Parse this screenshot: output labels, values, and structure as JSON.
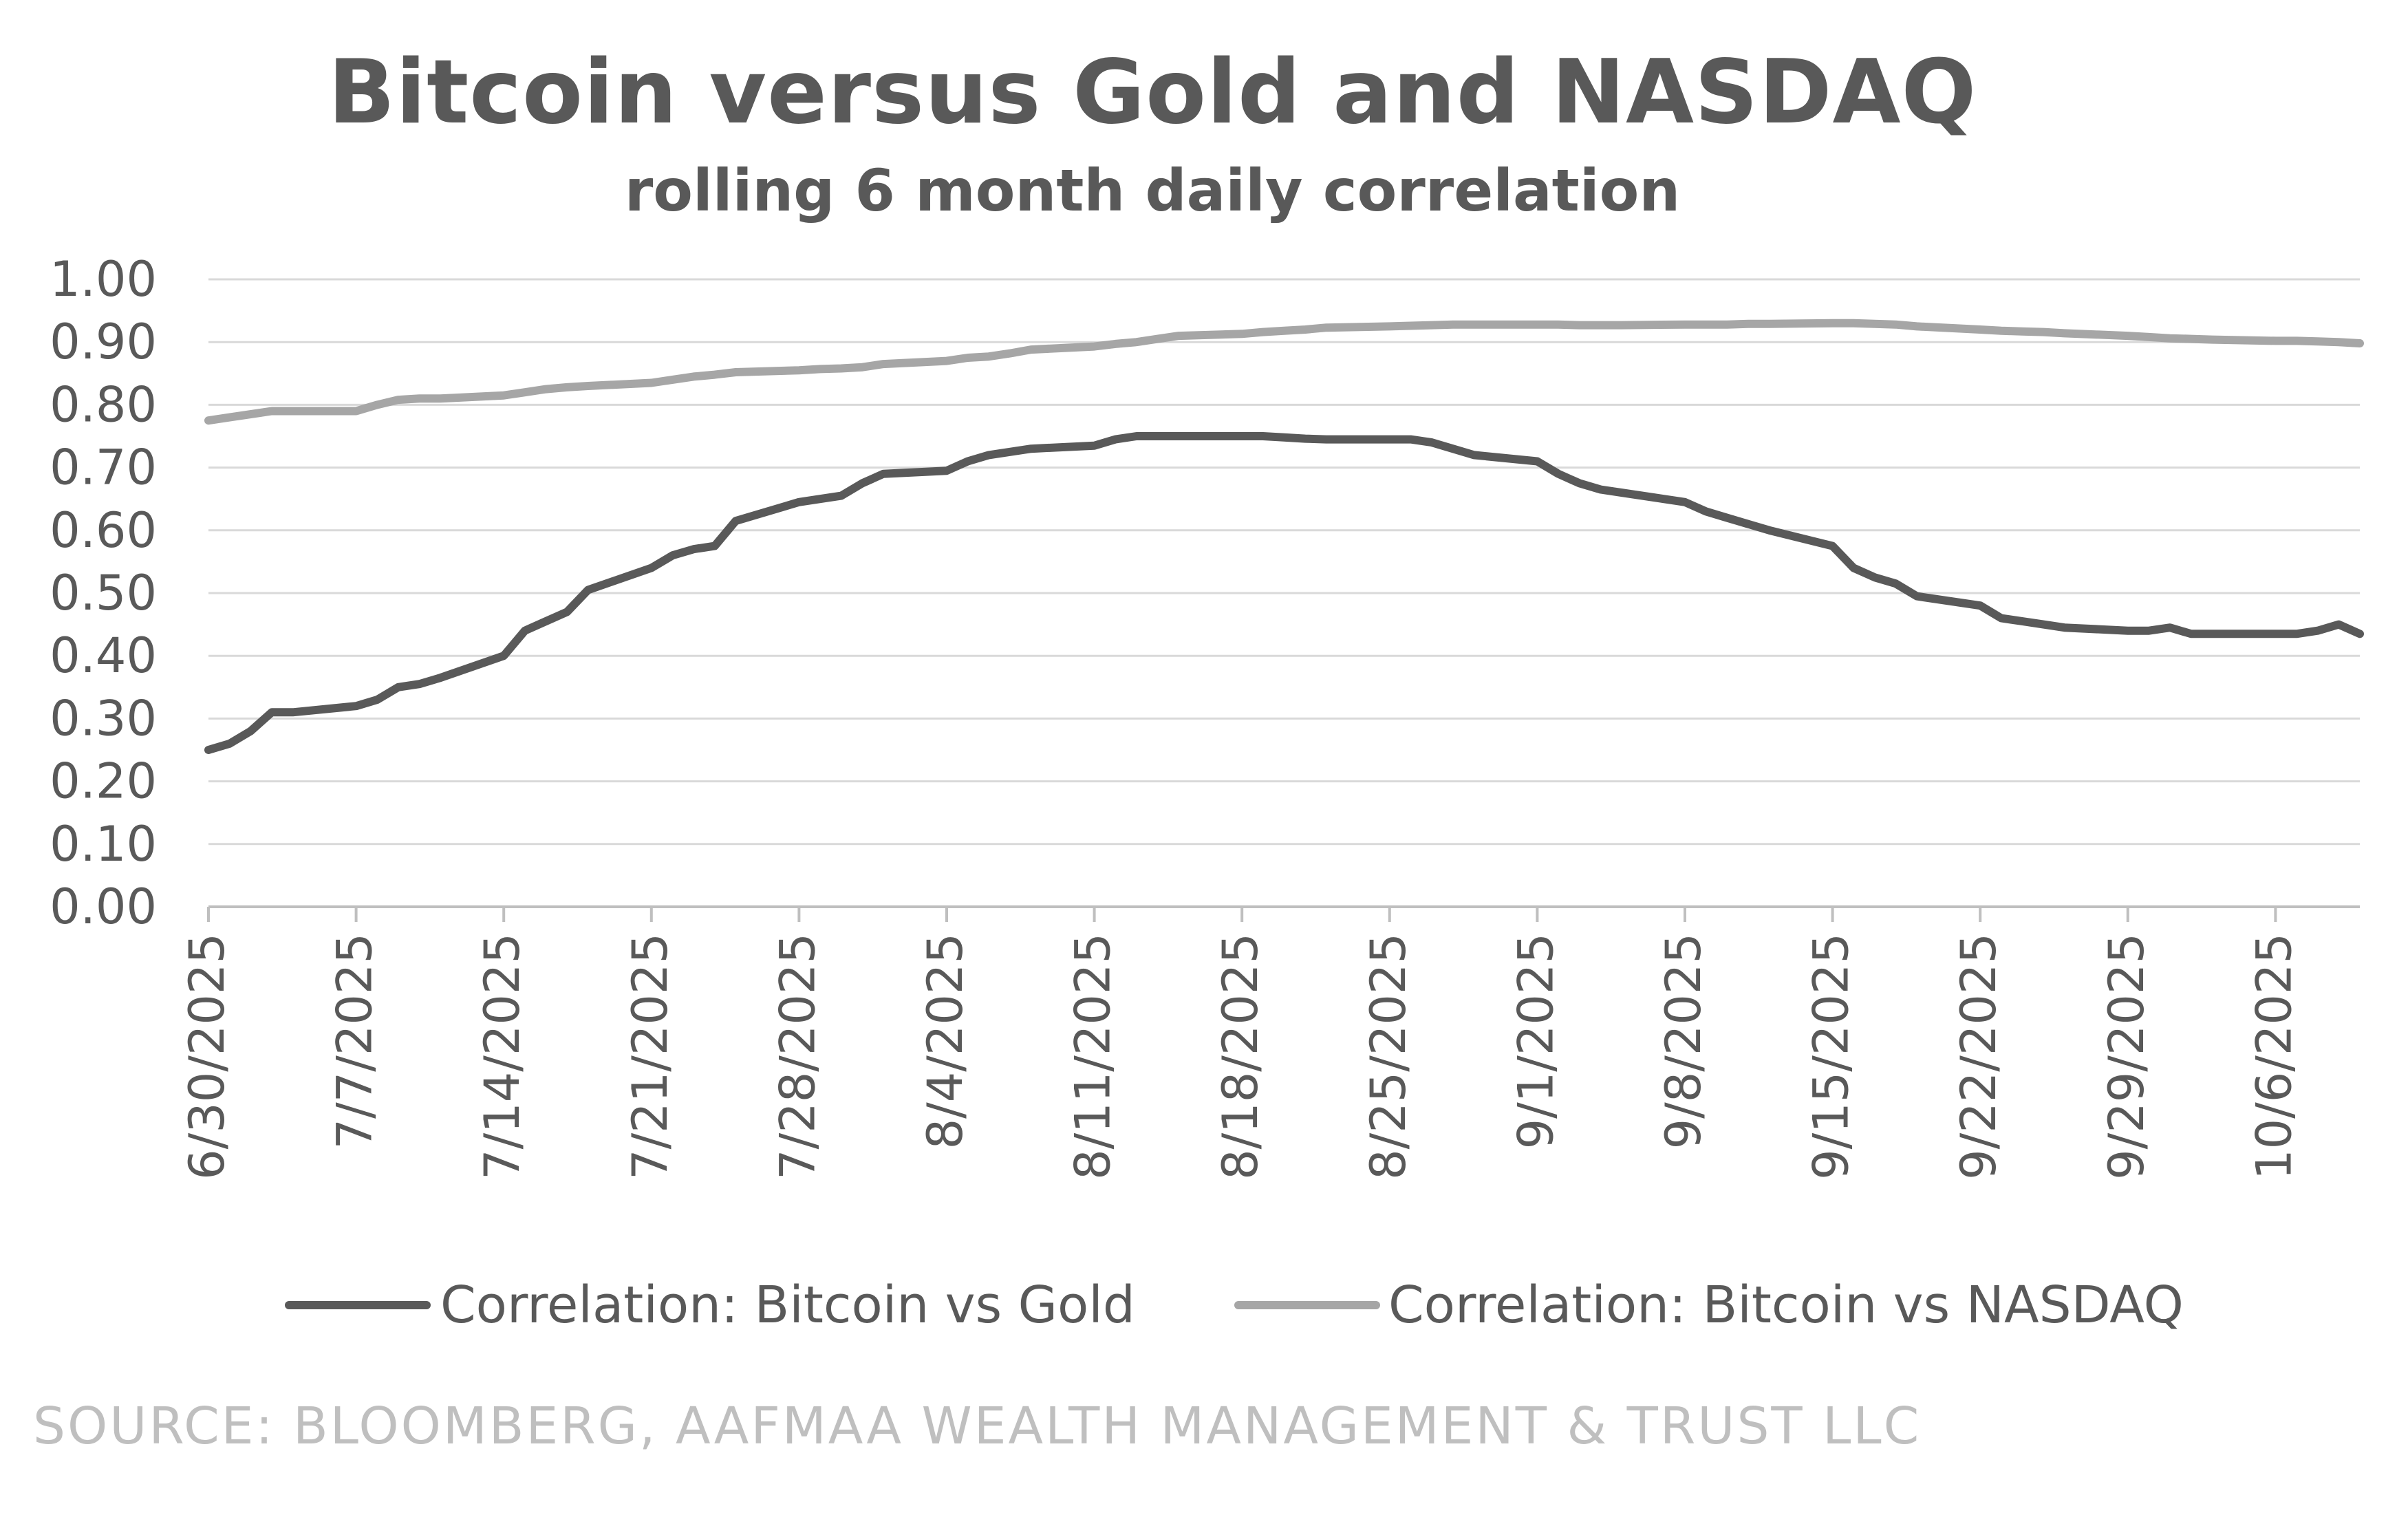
{
  "chart_data": {
    "type": "line",
    "title": "Bitcoin versus Gold and NASDAQ",
    "subtitle": "rolling 6 month daily correlation",
    "source": "SOURCE: BLOOMBERG, AAFMAA WEALTH MANAGEMENT & TRUST LLC",
    "ylim": [
      0,
      1
    ],
    "yticks": [
      "0.00",
      "0.10",
      "0.20",
      "0.30",
      "0.40",
      "0.50",
      "0.60",
      "0.70",
      "0.80",
      "0.90",
      "1.00"
    ],
    "xticks": [
      "6/30/2025",
      "7/7/2025",
      "7/14/2025",
      "7/21/2025",
      "7/28/2025",
      "8/4/2025",
      "8/11/2025",
      "8/18/2025",
      "8/25/2025",
      "9/1/2025",
      "9/8/2025",
      "9/15/2025",
      "9/22/2025",
      "9/29/2025",
      "10/6/2025"
    ],
    "xlim": [
      "6/30/2025",
      "10/10/2025"
    ],
    "grid": true,
    "legend_position": "bottom",
    "x": [
      "6/30/2025",
      "7/1/2025",
      "7/2/2025",
      "7/3/2025",
      "7/4/2025",
      "7/7/2025",
      "7/8/2025",
      "7/9/2025",
      "7/10/2025",
      "7/11/2025",
      "7/14/2025",
      "7/15/2025",
      "7/16/2025",
      "7/17/2025",
      "7/18/2025",
      "7/21/2025",
      "7/22/2025",
      "7/23/2025",
      "7/24/2025",
      "7/25/2025",
      "7/28/2025",
      "7/29/2025",
      "7/30/2025",
      "7/31/2025",
      "8/1/2025",
      "8/4/2025",
      "8/5/2025",
      "8/6/2025",
      "8/7/2025",
      "8/8/2025",
      "8/11/2025",
      "8/12/2025",
      "8/13/2025",
      "8/14/2025",
      "8/15/2025",
      "8/18/2025",
      "8/19/2025",
      "8/20/2025",
      "8/21/2025",
      "8/22/2025",
      "8/25/2025",
      "8/26/2025",
      "8/27/2025",
      "8/28/2025",
      "8/29/2025",
      "9/1/2025",
      "9/2/2025",
      "9/3/2025",
      "9/4/2025",
      "9/5/2025",
      "9/8/2025",
      "9/9/2025",
      "9/10/2025",
      "9/11/2025",
      "9/12/2025",
      "9/15/2025",
      "9/16/2025",
      "9/17/2025",
      "9/18/2025",
      "9/19/2025",
      "9/22/2025",
      "9/23/2025",
      "9/24/2025",
      "9/25/2025",
      "9/26/2025",
      "9/29/2025",
      "9/30/2025",
      "10/1/2025",
      "10/2/2025",
      "10/3/2025",
      "10/6/2025",
      "10/7/2025",
      "10/8/2025",
      "10/9/2025",
      "10/10/2025"
    ],
    "series": [
      {
        "name": "Correlation: Bitcoin vs Gold",
        "color": "#595959",
        "values": [
          0.25,
          0.26,
          0.28,
          0.31,
          0.31,
          0.32,
          0.33,
          0.35,
          0.355,
          0.365,
          0.4,
          0.44,
          0.455,
          0.47,
          0.505,
          0.54,
          0.56,
          0.57,
          0.575,
          0.615,
          0.645,
          0.65,
          0.655,
          0.675,
          0.69,
          0.695,
          0.71,
          0.72,
          0.725,
          0.73,
          0.735,
          0.745,
          0.75,
          0.75,
          0.75,
          0.75,
          0.75,
          0.748,
          0.746,
          0.745,
          0.745,
          0.745,
          0.74,
          0.73,
          0.72,
          0.71,
          0.69,
          0.675,
          0.665,
          0.66,
          0.645,
          0.63,
          0.62,
          0.61,
          0.6,
          0.575,
          0.54,
          0.525,
          0.515,
          0.495,
          0.48,
          0.46,
          0.455,
          0.45,
          0.445,
          0.44,
          0.44,
          0.445,
          0.435,
          0.435,
          0.435,
          0.435,
          0.44,
          0.45,
          0.435
        ]
      },
      {
        "name": "Correlation: Bitcoin vs NASDAQ",
        "color": "#a6a6a6",
        "values": [
          0.775,
          0.78,
          0.785,
          0.79,
          0.79,
          0.79,
          0.8,
          0.808,
          0.81,
          0.81,
          0.815,
          0.82,
          0.825,
          0.828,
          0.83,
          0.835,
          0.84,
          0.845,
          0.848,
          0.852,
          0.855,
          0.857,
          0.858,
          0.86,
          0.865,
          0.87,
          0.875,
          0.877,
          0.882,
          0.888,
          0.893,
          0.897,
          0.9,
          0.905,
          0.91,
          0.913,
          0.916,
          0.918,
          0.92,
          0.923,
          0.925,
          0.926,
          0.927,
          0.928,
          0.928,
          0.928,
          0.928,
          0.927,
          0.927,
          0.927,
          0.928,
          0.928,
          0.928,
          0.929,
          0.929,
          0.93,
          0.93,
          0.929,
          0.928,
          0.925,
          0.92,
          0.918,
          0.917,
          0.916,
          0.914,
          0.91,
          0.908,
          0.906,
          0.905,
          0.904,
          0.902,
          0.902,
          0.901,
          0.9,
          0.898
        ]
      }
    ]
  }
}
